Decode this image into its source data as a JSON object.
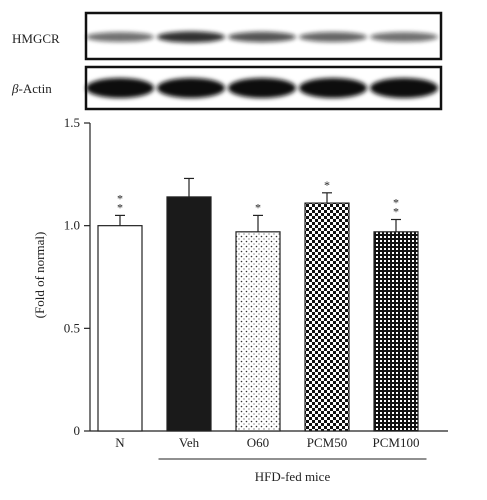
{
  "blots": [
    {
      "label": "HMGCR",
      "intensities": [
        0.45,
        0.8,
        0.6,
        0.5,
        0.45
      ]
    },
    {
      "label_prefix": "β",
      "label_suffix": "-Actin",
      "intensities": [
        1,
        1,
        1,
        1,
        1
      ]
    }
  ],
  "chart_data": {
    "type": "bar",
    "categories": [
      "N",
      "Veh",
      "O60",
      "PCM50",
      "PCM100"
    ],
    "values": [
      1.0,
      1.14,
      0.97,
      1.11,
      0.97
    ],
    "errors": [
      0.05,
      0.09,
      0.08,
      0.05,
      0.06
    ],
    "significance": [
      "**",
      "",
      "*",
      "*",
      "**"
    ],
    "patterns": [
      "white",
      "black",
      "fine-dots",
      "checker",
      "dense-checker"
    ],
    "ylabel": "(Fold of normal)",
    "yticks": [
      0,
      0.5,
      1.0,
      1.5
    ],
    "ytick_labels": [
      "0",
      "0.5",
      "1.0",
      "1.5"
    ],
    "ylim": [
      0,
      1.5
    ],
    "group_label": "HFD-fed mice",
    "group_span": [
      1,
      4
    ]
  },
  "colors": {
    "axis": "#222222",
    "text": "#222222"
  }
}
